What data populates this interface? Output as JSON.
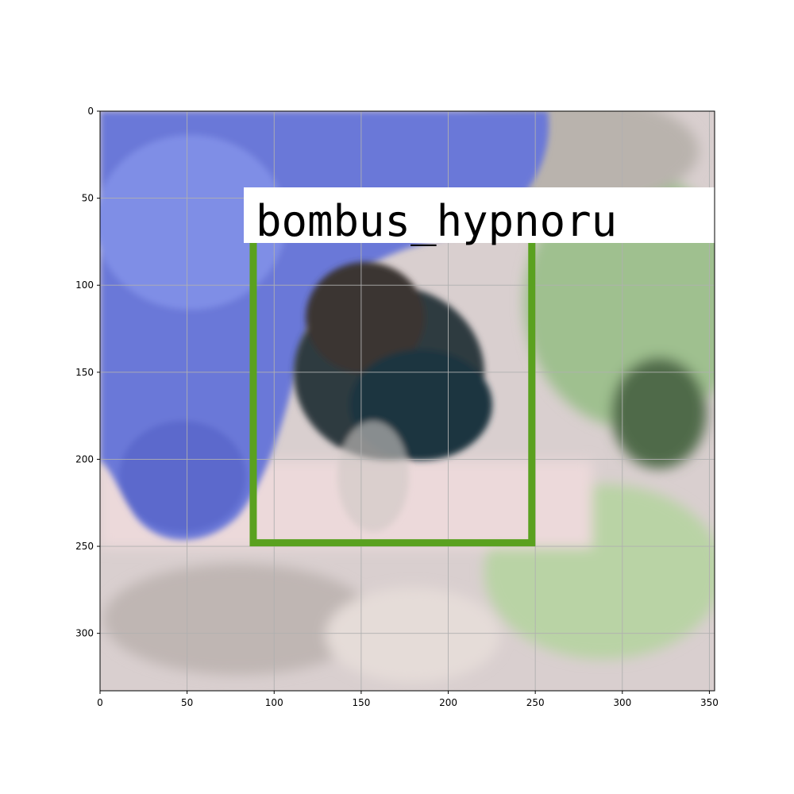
{
  "image": {
    "axis": {
      "x_ticks": [
        0,
        50,
        100,
        150,
        200,
        250,
        300,
        350
      ],
      "y_ticks": [
        0,
        50,
        100,
        150,
        200,
        250,
        300
      ],
      "x_range": [
        0,
        353
      ],
      "y_range": [
        0,
        333
      ],
      "y_inverted": true,
      "grid": true
    },
    "detection": {
      "label": "bombus_hypnoru",
      "box": {
        "x0": 88,
        "y0": 74,
        "x1": 248,
        "y1": 248
      },
      "box_color": "#5aa11f",
      "label_background": "#ffffff"
    },
    "palette": {
      "flower": "#6a78d8",
      "flower_light": "#8a98e8",
      "bee_body": "#3a3a3a",
      "bee_dark": "#1e2a38",
      "background_pink": "#e9d8d8",
      "background_green": "#a9c99a",
      "background_gray": "#c8c0c0"
    }
  }
}
